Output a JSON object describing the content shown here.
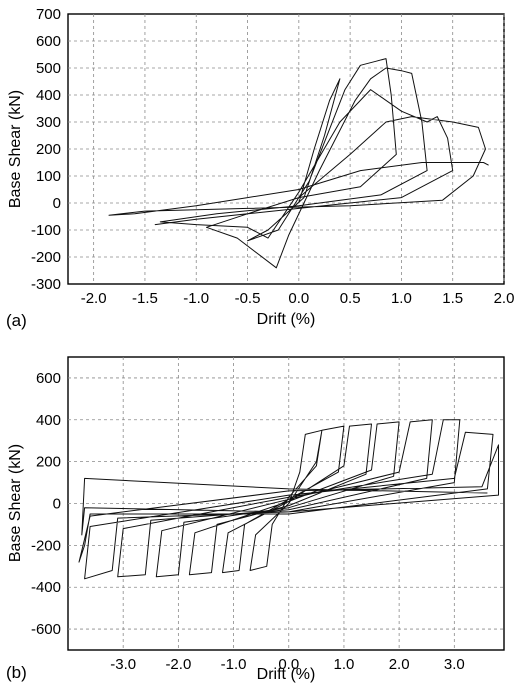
{
  "chart_data": [
    {
      "type": "line",
      "panel_label": "(a)",
      "xlabel": "Drift (%)",
      "ylabel": "Base Shear (kN)",
      "xlim": [
        -2.25,
        2.0
      ],
      "ylim": [
        -300,
        700
      ],
      "xticks": [
        "-2.0",
        "-1.5",
        "-1.0",
        "-0.5",
        "0.0",
        "0.5",
        "1.0",
        "1.5",
        "2.0"
      ],
      "xtick_values": [
        -2.0,
        -1.5,
        -1.0,
        -0.5,
        0.0,
        0.5,
        1.0,
        1.5,
        2.0
      ],
      "yticks": [
        "700",
        "600",
        "500",
        "400",
        "300",
        "200",
        "100",
        "0",
        "-100",
        "-200",
        "-300"
      ],
      "ytick_values": [
        700,
        600,
        500,
        400,
        300,
        200,
        100,
        0,
        -100,
        -200,
        -300
      ],
      "grid": true,
      "series": [
        {
          "values": [
            [
              0,
              0
            ],
            [
              0.15,
              200
            ],
            [
              0.3,
              380
            ],
            [
              0.4,
              460
            ],
            [
              0.25,
              250
            ],
            [
              0.05,
              20
            ],
            [
              -0.3,
              -100
            ],
            [
              -0.5,
              -140
            ],
            [
              -0.2,
              -100
            ],
            [
              0.1,
              80
            ],
            [
              0.45,
              420
            ],
            [
              0.6,
              510
            ],
            [
              0.75,
              525
            ],
            [
              0.85,
              535
            ],
            [
              0.9,
              400
            ],
            [
              0.95,
              180
            ],
            [
              0.6,
              60
            ],
            [
              0.0,
              20
            ],
            [
              -0.5,
              -40
            ],
            [
              -0.9,
              -90
            ],
            [
              -0.6,
              -130
            ],
            [
              -0.22,
              -240
            ],
            [
              -0.1,
              -120
            ],
            [
              0.2,
              120
            ],
            [
              0.55,
              380
            ],
            [
              0.7,
              460
            ],
            [
              0.85,
              500
            ],
            [
              1.0,
              490
            ],
            [
              1.1,
              480
            ],
            [
              1.2,
              300
            ],
            [
              1.25,
              120
            ],
            [
              0.8,
              30
            ],
            [
              0.0,
              -10
            ],
            [
              -0.8,
              -40
            ],
            [
              -1.35,
              -70
            ],
            [
              -1.0,
              -80
            ],
            [
              -0.5,
              -90
            ],
            [
              -0.3,
              -130
            ],
            [
              0.0,
              40
            ],
            [
              0.4,
              300
            ],
            [
              0.7,
              420
            ],
            [
              1.0,
              340
            ],
            [
              1.25,
              300
            ],
            [
              1.35,
              320
            ],
            [
              1.45,
              240
            ],
            [
              1.5,
              120
            ],
            [
              1.0,
              20
            ],
            [
              0.0,
              -20
            ],
            [
              -1.0,
              -60
            ],
            [
              -1.4,
              -80
            ],
            [
              -1.0,
              -60
            ],
            [
              -0.5,
              -40
            ],
            [
              0.0,
              20
            ],
            [
              0.5,
              180
            ],
            [
              0.85,
              300
            ],
            [
              1.1,
              320
            ],
            [
              1.5,
              300
            ],
            [
              1.75,
              280
            ],
            [
              1.82,
              200
            ],
            [
              1.7,
              100
            ],
            [
              1.4,
              10
            ],
            [
              0.5,
              -10
            ],
            [
              -0.5,
              -20
            ],
            [
              -1.5,
              -30
            ],
            [
              -1.85,
              -45
            ],
            [
              -1.6,
              -40
            ],
            [
              -1.0,
              -10
            ],
            [
              -0.5,
              20
            ],
            [
              0.0,
              50
            ],
            [
              0.6,
              120
            ],
            [
              1.2,
              150
            ],
            [
              1.8,
              150
            ],
            [
              1.85,
              140
            ]
          ]
        }
      ]
    },
    {
      "type": "line",
      "panel_label": "(b)",
      "xlabel": "Drift (%)",
      "ylabel": "Base Shear (kN)",
      "xlim": [
        -4.0,
        3.9
      ],
      "ylim": [
        -700,
        700
      ],
      "xticks": [
        "-3.0",
        "-2.0",
        "-1.0",
        "0.0",
        "1.0",
        "2.0",
        "3.0"
      ],
      "xtick_values": [
        -3.0,
        -2.0,
        -1.0,
        0.0,
        1.0,
        2.0,
        3.0
      ],
      "yticks": [
        "600",
        "400",
        "200",
        "0",
        "-200",
        "-400",
        "-600"
      ],
      "ytick_values": [
        600,
        400,
        200,
        0,
        -200,
        -400,
        -600
      ],
      "grid": true,
      "series": [
        {
          "values": [
            [
              0,
              0
            ],
            [
              0.2,
              150
            ],
            [
              0.3,
              330
            ],
            [
              0.6,
              350
            ],
            [
              0.5,
              180
            ],
            [
              0.0,
              30
            ],
            [
              -0.3,
              -100
            ],
            [
              -0.4,
              -300
            ],
            [
              -0.7,
              -320
            ],
            [
              -0.6,
              -150
            ],
            [
              0.0,
              0
            ],
            [
              0.5,
              200
            ],
            [
              0.6,
              350
            ],
            [
              1.0,
              370
            ],
            [
              0.9,
              150
            ],
            [
              0.0,
              20
            ],
            [
              -0.8,
              -100
            ],
            [
              -0.9,
              -320
            ],
            [
              -1.2,
              -330
            ],
            [
              -1.1,
              -140
            ],
            [
              0.0,
              10
            ],
            [
              1.0,
              180
            ],
            [
              1.1,
              370
            ],
            [
              1.5,
              380
            ],
            [
              1.4,
              140
            ],
            [
              0.0,
              -10
            ],
            [
              -1.3,
              -100
            ],
            [
              -1.4,
              -330
            ],
            [
              -1.8,
              -340
            ],
            [
              -1.7,
              -140
            ],
            [
              0.0,
              10
            ],
            [
              1.5,
              160
            ],
            [
              1.6,
              380
            ],
            [
              2.0,
              390
            ],
            [
              1.9,
              130
            ],
            [
              0.0,
              -20
            ],
            [
              -1.9,
              -90
            ],
            [
              -2.0,
              -340
            ],
            [
              -2.4,
              -350
            ],
            [
              -2.3,
              -130
            ],
            [
              0.0,
              20
            ],
            [
              2.0,
              150
            ],
            [
              2.2,
              390
            ],
            [
              2.6,
              400
            ],
            [
              2.5,
              120
            ],
            [
              0.0,
              -30
            ],
            [
              -2.5,
              -80
            ],
            [
              -2.6,
              -340
            ],
            [
              -3.1,
              -350
            ],
            [
              -3.0,
              -120
            ],
            [
              0.0,
              30
            ],
            [
              2.6,
              140
            ],
            [
              2.8,
              400
            ],
            [
              3.1,
              400
            ],
            [
              3.0,
              100
            ],
            [
              0.0,
              -40
            ],
            [
              -3.1,
              -70
            ],
            [
              -3.2,
              -320
            ],
            [
              -3.7,
              -360
            ],
            [
              -3.6,
              -110
            ],
            [
              0.0,
              40
            ],
            [
              3.0,
              120
            ],
            [
              3.2,
              340
            ],
            [
              3.7,
              330
            ],
            [
              3.6,
              70
            ],
            [
              0.0,
              -50
            ],
            [
              -3.6,
              -50
            ],
            [
              -3.7,
              -200
            ],
            [
              -3.8,
              -280
            ],
            [
              -3.6,
              -60
            ],
            [
              0.0,
              60
            ],
            [
              3.5,
              80
            ],
            [
              3.8,
              280
            ],
            [
              3.8,
              40
            ],
            [
              0.0,
              -40
            ],
            [
              -3.7,
              -20
            ],
            [
              -3.75,
              -150
            ],
            [
              -3.7,
              120
            ],
            [
              0.0,
              70
            ],
            [
              3.6,
              50
            ]
          ]
        }
      ]
    }
  ]
}
